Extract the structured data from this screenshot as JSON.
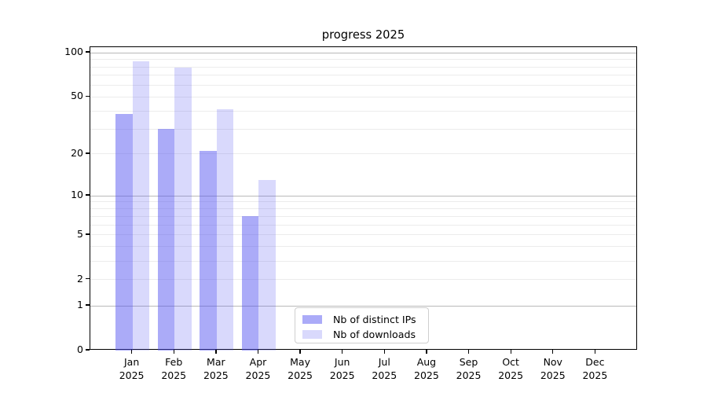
{
  "chart_data": {
    "type": "bar",
    "title": "progress 2025",
    "categories": [
      "Jan",
      "Feb",
      "Mar",
      "Apr",
      "May",
      "Jun",
      "Jul",
      "Aug",
      "Sep",
      "Oct",
      "Nov",
      "Dec"
    ],
    "year_label": "2025",
    "series": [
      {
        "name": "Nb of distinct IPs",
        "color": "rgba(80,80,240,0.48)",
        "values": [
          38,
          30,
          21,
          7,
          null,
          null,
          null,
          null,
          null,
          null,
          null,
          null
        ]
      },
      {
        "name": "Nb of downloads",
        "color": "rgba(80,80,240,0.215)",
        "values": [
          87,
          79,
          41,
          13,
          null,
          null,
          null,
          null,
          null,
          null,
          null,
          null
        ]
      }
    ],
    "xlabel": "",
    "ylabel": "",
    "scale": "log1p",
    "ylim": [
      0,
      109
    ],
    "y_ticks": [
      0,
      1,
      2,
      5,
      10,
      20,
      50,
      100
    ],
    "y_major_gridlines": [
      1,
      10,
      100
    ],
    "y_minor_gridlines": [
      2,
      3,
      4,
      5,
      6,
      7,
      8,
      9,
      20,
      30,
      40,
      50,
      60,
      70,
      80,
      90
    ],
    "grid": true,
    "legend_position": "lower center",
    "colors": {
      "major_grid": "#b9b9b9",
      "minor_grid": "#ececec",
      "axis": "#000000",
      "bar_dark": "rgba(80,80,240,0.48)",
      "bar_light": "rgba(80,80,240,0.215)"
    }
  }
}
